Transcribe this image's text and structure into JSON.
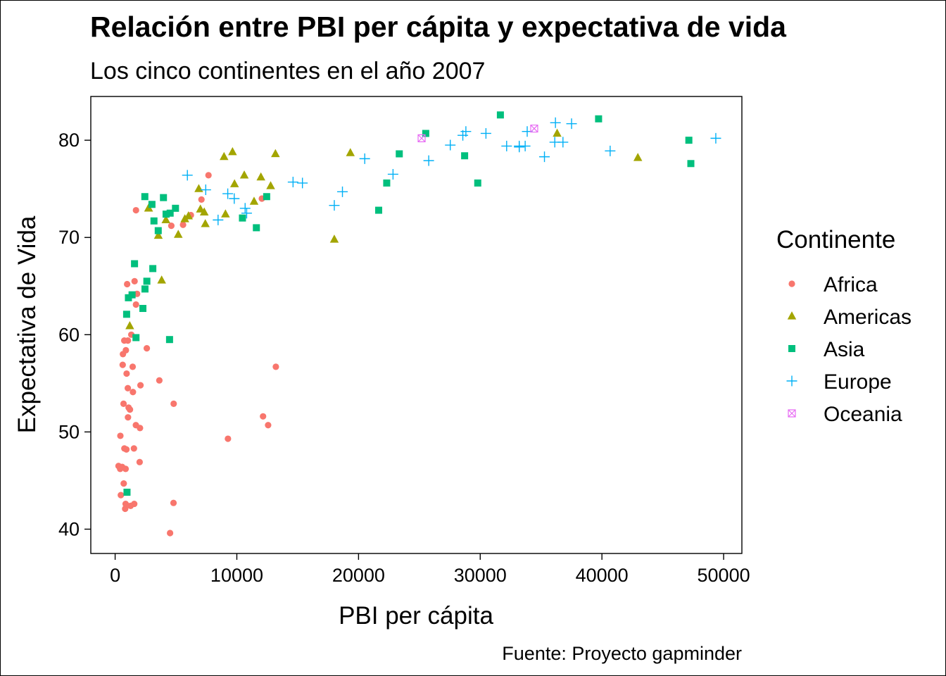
{
  "chart_data": {
    "type": "scatter",
    "title": "Relación entre PBI per cápita y expectativa de vida",
    "subtitle": "Los cinco continentes en el año 2007",
    "xlabel": "PBI per cápita",
    "ylabel": "Expectativa de Vida",
    "caption": "Fuente: Proyecto gapminder",
    "xlim": [
      -2000,
      51500
    ],
    "ylim": [
      37.5,
      84.5
    ],
    "x_ticks": [
      "0",
      "10000",
      "20000",
      "30000",
      "40000",
      "50000"
    ],
    "y_ticks": [
      "40",
      "50",
      "60",
      "70",
      "80"
    ],
    "grid": false,
    "legend": {
      "title": "Continente",
      "position": "right"
    },
    "series": [
      {
        "name": "Africa",
        "color": "#F8766D",
        "marker": "circle",
        "points": [
          [
            6223,
            72.3
          ],
          [
            4797,
            42.7
          ],
          [
            1441,
            56.7
          ],
          [
            12570,
            50.7
          ],
          [
            1217,
            52.3
          ],
          [
            430,
            49.6
          ],
          [
            2042,
            50.4
          ],
          [
            706,
            44.7
          ],
          [
            1704,
            50.7
          ],
          [
            986,
            65.2
          ],
          [
            278,
            46.5
          ],
          [
            3633,
            55.3
          ],
          [
            1545,
            48.3
          ],
          [
            2082,
            54.8
          ],
          [
            5581,
            71.3
          ],
          [
            12154,
            51.6
          ],
          [
            641,
            58.0
          ],
          [
            691,
            52.9
          ],
          [
            13206,
            56.7
          ],
          [
            753,
            59.4
          ],
          [
            1328,
            60.0
          ],
          [
            943,
            56.0
          ],
          [
            579,
            46.4
          ],
          [
            1463,
            54.1
          ],
          [
            1569,
            42.6
          ],
          [
            414,
            46.2
          ],
          [
            12057,
            74.0
          ],
          [
            1045,
            59.4
          ],
          [
            760,
            48.3
          ],
          [
            1042,
            54.5
          ],
          [
            1803,
            64.2
          ],
          [
            1713,
            72.8
          ],
          [
            4617,
            71.2
          ],
          [
            824,
            42.1
          ],
          [
            4811,
            52.9
          ],
          [
            620,
            56.9
          ],
          [
            2014,
            46.9
          ],
          [
            7670,
            76.4
          ],
          [
            863,
            46.2
          ],
          [
            1598,
            65.5
          ],
          [
            1712,
            63.1
          ],
          [
            862,
            42.6
          ],
          [
            926,
            48.2
          ],
          [
            9270,
            49.3
          ],
          [
            2602,
            58.6
          ],
          [
            4513,
            39.6
          ],
          [
            1107,
            52.5
          ],
          [
            883,
            58.4
          ],
          [
            7093,
            73.9
          ],
          [
            1056,
            51.5
          ],
          [
            1271,
            42.4
          ],
          [
            470,
            43.5
          ]
        ]
      },
      {
        "name": "Americas",
        "color": "#A3A500",
        "marker": "triangle",
        "points": [
          [
            12779,
            75.3
          ],
          [
            3822,
            65.6
          ],
          [
            9066,
            72.4
          ],
          [
            36319,
            80.7
          ],
          [
            13172,
            78.6
          ],
          [
            7007,
            72.9
          ],
          [
            9645,
            78.8
          ],
          [
            8948,
            78.3
          ],
          [
            6025,
            72.2
          ],
          [
            6873,
            75.0
          ],
          [
            5728,
            71.9
          ],
          [
            5186,
            70.3
          ],
          [
            2749,
            73.0
          ],
          [
            1202,
            60.9
          ],
          [
            3548,
            70.2
          ],
          [
            7321,
            72.6
          ],
          [
            11978,
            76.2
          ],
          [
            2749,
            73.0
          ],
          [
            9809,
            75.5
          ],
          [
            4173,
            71.8
          ],
          [
            7409,
            71.4
          ],
          [
            19329,
            78.7
          ],
          [
            18009,
            69.8
          ],
          [
            42952,
            78.2
          ],
          [
            10611,
            76.4
          ],
          [
            11416,
            73.7
          ]
        ]
      },
      {
        "name": "Asia",
        "color": "#00BF7D",
        "marker": "square",
        "points": [
          [
            975,
            43.8
          ],
          [
            29796,
            75.6
          ],
          [
            1391,
            64.1
          ],
          [
            1714,
            59.7
          ],
          [
            4959,
            73.0
          ],
          [
            39725,
            82.2
          ],
          [
            2452,
            64.7
          ],
          [
            3541,
            70.7
          ],
          [
            11606,
            71.0
          ],
          [
            4471,
            59.5
          ],
          [
            25523,
            80.7
          ],
          [
            31656,
            82.6
          ],
          [
            4519,
            72.5
          ],
          [
            1593,
            67.3
          ],
          [
            23348,
            78.6
          ],
          [
            47307,
            77.6
          ],
          [
            10461,
            72.0
          ],
          [
            12452,
            74.2
          ],
          [
            3096,
            66.8
          ],
          [
            944,
            62.1
          ],
          [
            1091,
            63.8
          ],
          [
            22316,
            75.6
          ],
          [
            2606,
            65.5
          ],
          [
            3190,
            71.7
          ],
          [
            21655,
            72.8
          ],
          [
            47143,
            80.0
          ],
          [
            3970,
            74.1
          ],
          [
            4185,
            72.4
          ],
          [
            28718,
            78.4
          ],
          [
            2281,
            62.7
          ],
          [
            2441,
            74.2
          ],
          [
            3025,
            73.4
          ]
        ]
      },
      {
        "name": "Europe",
        "color": "#00B0F6",
        "marker": "plus",
        "points": [
          [
            5937,
            76.4
          ],
          [
            36126,
            79.8
          ],
          [
            33693,
            79.4
          ],
          [
            7446,
            74.9
          ],
          [
            10681,
            73.0
          ],
          [
            14619,
            75.7
          ],
          [
            22834,
            76.5
          ],
          [
            35278,
            78.3
          ],
          [
            33207,
            79.3
          ],
          [
            30470,
            80.7
          ],
          [
            32170,
            79.4
          ],
          [
            27538,
            79.5
          ],
          [
            18009,
            73.3
          ],
          [
            36181,
            81.8
          ],
          [
            40676,
            78.9
          ],
          [
            28570,
            80.5
          ],
          [
            9254,
            74.5
          ],
          [
            36798,
            79.8
          ],
          [
            49357,
            80.2
          ],
          [
            15390,
            75.6
          ],
          [
            20510,
            78.1
          ],
          [
            10808,
            72.5
          ],
          [
            9787,
            74.0
          ],
          [
            18678,
            74.7
          ],
          [
            25768,
            77.9
          ],
          [
            28821,
            80.9
          ],
          [
            33860,
            80.9
          ],
          [
            37506,
            81.7
          ],
          [
            8458,
            71.8
          ],
          [
            33203,
            79.4
          ]
        ]
      },
      {
        "name": "Oceania",
        "color": "#E76BF3",
        "marker": "square-x",
        "points": [
          [
            34435,
            81.2
          ],
          [
            25185,
            80.2
          ]
        ]
      }
    ]
  }
}
